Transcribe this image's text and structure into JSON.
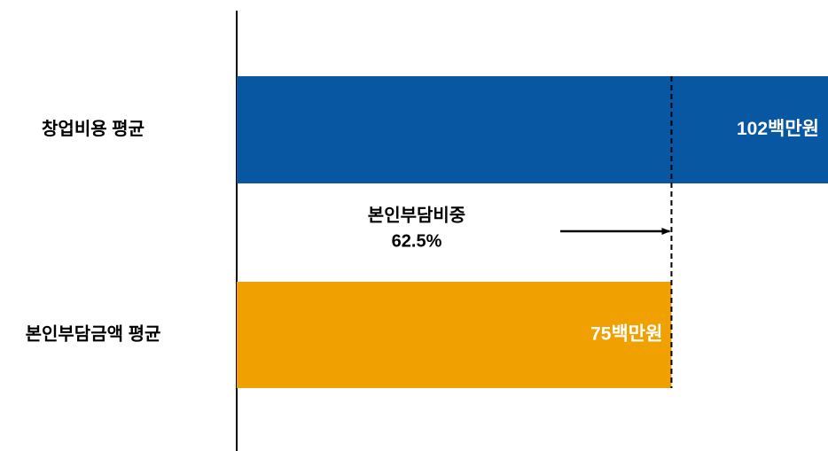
{
  "chart_data": {
    "type": "hbar",
    "categories": [
      "창업비용 평균",
      "본인부담금액 평균"
    ],
    "values": [
      102,
      75
    ],
    "value_labels": [
      "102백만원",
      "75백만원"
    ],
    "colors": [
      "#0757a3",
      "#f0a000"
    ],
    "annotation": [
      "본인부담비중",
      "62.5%"
    ]
  }
}
